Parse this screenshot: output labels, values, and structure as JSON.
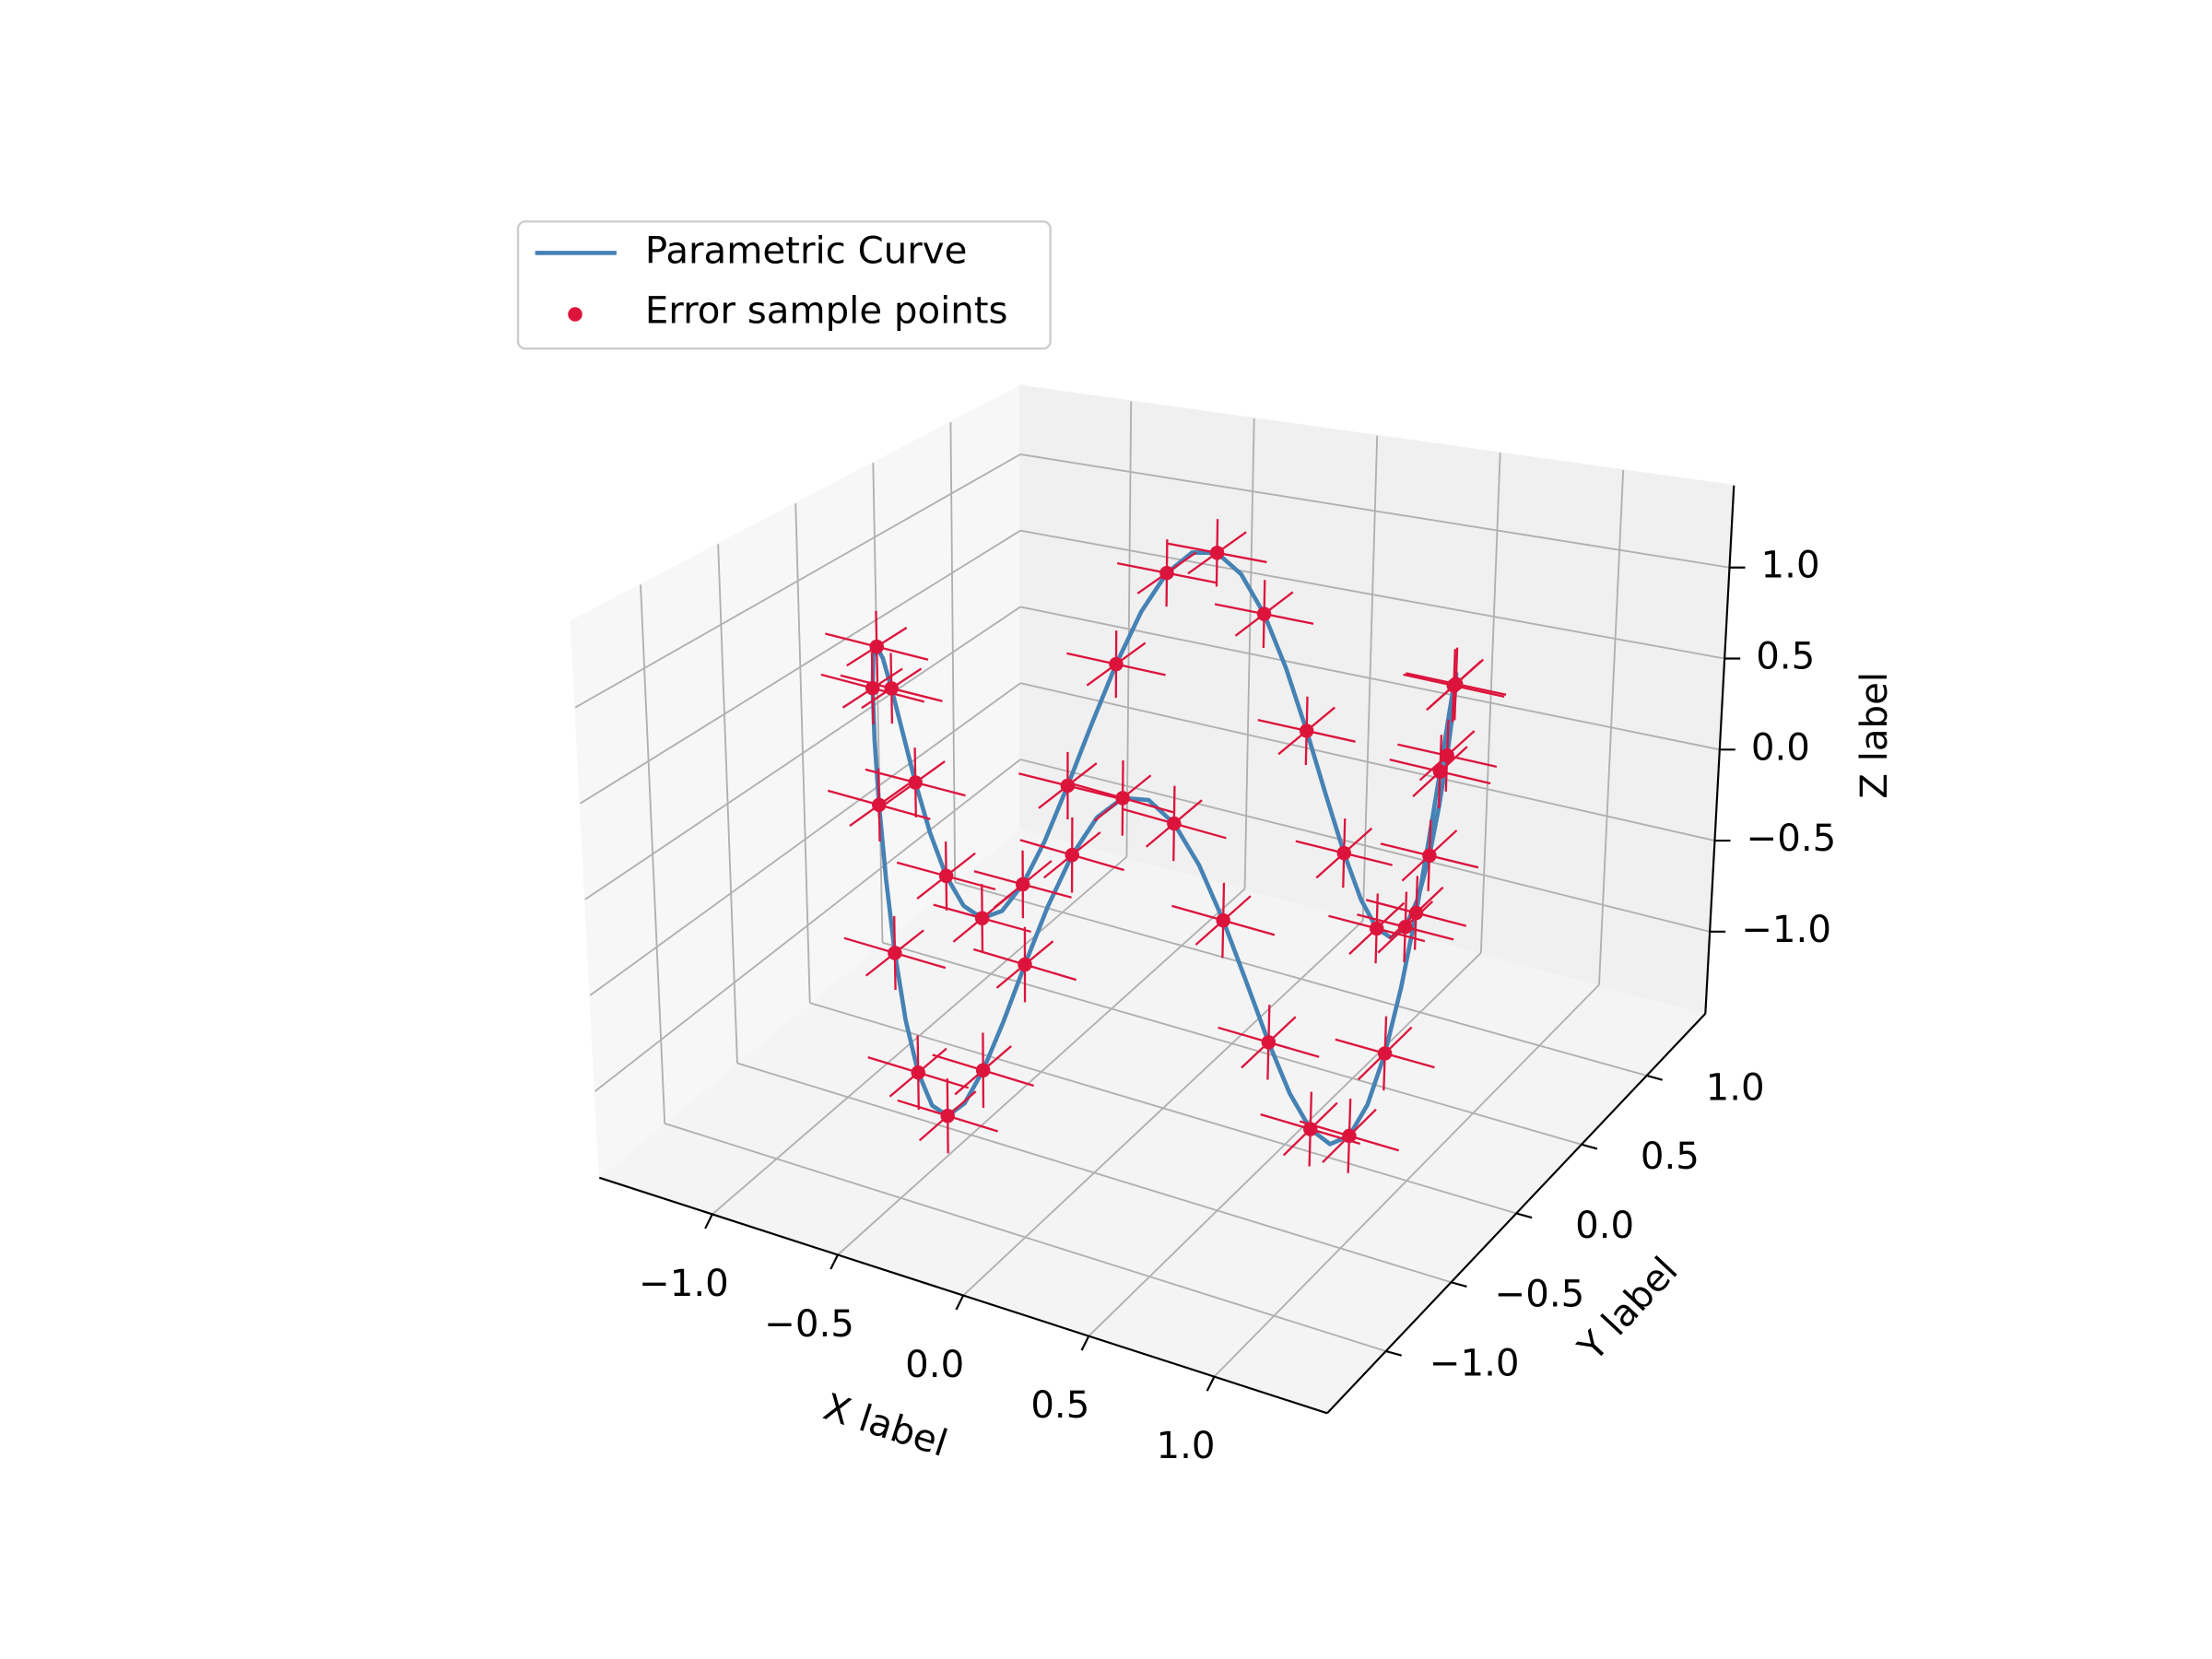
{
  "chart_data": {
    "type": "line3d",
    "xlabel": "X label",
    "ylabel": "Y label",
    "zlabel": "Z label",
    "xlim": [
      -1.45,
      1.45
    ],
    "ylim": [
      -1.45,
      1.45
    ],
    "zlim": [
      -1.45,
      1.45
    ],
    "xticks": [
      {
        "value": -1,
        "label": "−1.0"
      },
      {
        "value": -0.5,
        "label": "−0.5"
      },
      {
        "value": 0,
        "label": "0.0"
      },
      {
        "value": 0.5,
        "label": "0.5"
      },
      {
        "value": 1,
        "label": "1.0"
      }
    ],
    "yticks": [
      {
        "value": -1,
        "label": "−1.0"
      },
      {
        "value": -0.5,
        "label": "−0.5"
      },
      {
        "value": 0,
        "label": "0.0"
      },
      {
        "value": 0.5,
        "label": "0.5"
      },
      {
        "value": 1,
        "label": "1.0"
      }
    ],
    "zticks": [
      {
        "value": -1,
        "label": "−1.0"
      },
      {
        "value": -0.5,
        "label": "−0.5"
      },
      {
        "value": 0,
        "label": "0.0"
      },
      {
        "value": 0.5,
        "label": "0.5"
      },
      {
        "value": 1,
        "label": "1.0"
      }
    ],
    "grid": true,
    "legend": "upper left",
    "series": [
      {
        "name": "Parametric Curve",
        "type": "line",
        "color": "#4682b4",
        "x": [
          1,
          0.996,
          0.985,
          0.966,
          0.94,
          0.906,
          0.866,
          0.819,
          0.766,
          0.707,
          0.643,
          0.574,
          0.5,
          0.423,
          0.342,
          0.259,
          0.174,
          0.087,
          0,
          -0.087,
          -0.174,
          -0.259,
          -0.342,
          -0.423,
          -0.5,
          -0.574,
          -0.643,
          -0.707,
          -0.766,
          -0.819,
          -0.866,
          -0.906,
          -0.94,
          -0.966,
          -0.985,
          -0.996,
          -1,
          -0.996,
          -0.985,
          -0.966,
          -0.94,
          -0.906,
          -0.866,
          -0.819,
          -0.766,
          -0.707,
          -0.643,
          -0.574,
          -0.5,
          -0.423,
          -0.342,
          -0.259,
          -0.174,
          -0.087,
          0,
          0.087,
          0.174,
          0.259,
          0.342,
          0.423,
          0.5,
          0.574,
          0.643,
          0.707,
          0.766,
          0.819,
          0.866,
          0.906,
          0.94,
          0.966,
          0.985,
          0.996,
          1
        ],
        "y": [
          0,
          0.087,
          0.174,
          0.259,
          0.342,
          0.423,
          0.5,
          0.574,
          0.643,
          0.707,
          0.766,
          0.819,
          0.866,
          0.906,
          0.94,
          0.966,
          0.985,
          0.996,
          1,
          0.996,
          0.985,
          0.966,
          0.94,
          0.906,
          0.866,
          0.819,
          0.766,
          0.707,
          0.643,
          0.574,
          0.5,
          0.423,
          0.342,
          0.259,
          0.174,
          0.087,
          0,
          -0.087,
          -0.174,
          -0.259,
          -0.342,
          -0.423,
          -0.5,
          -0.574,
          -0.643,
          -0.707,
          -0.766,
          -0.819,
          -0.866,
          -0.906,
          -0.94,
          -0.966,
          -0.985,
          -0.996,
          -1,
          -0.996,
          -0.985,
          -0.966,
          -0.94,
          -0.906,
          -0.866,
          -0.819,
          -0.766,
          -0.707,
          -0.643,
          -0.574,
          -0.5,
          -0.423,
          -0.342,
          -0.259,
          -0.174,
          -0.087,
          0
        ],
        "z": [
          0,
          0.342,
          0.643,
          0.866,
          0.985,
          0.985,
          0.866,
          0.643,
          0.342,
          0,
          -0.342,
          -0.643,
          -0.866,
          -0.985,
          -0.985,
          -0.866,
          -0.643,
          -0.342,
          0,
          0.342,
          0.643,
          0.866,
          0.985,
          0.985,
          0.866,
          0.643,
          0.342,
          0,
          -0.342,
          -0.643,
          -0.866,
          -0.985,
          -0.985,
          -0.866,
          -0.643,
          -0.342,
          0,
          0.342,
          0.643,
          0.866,
          0.985,
          0.985,
          0.866,
          0.643,
          0.342,
          0,
          -0.342,
          -0.643,
          -0.866,
          -0.985,
          -0.985,
          -0.866,
          -0.643,
          -0.342,
          0,
          0.342,
          0.643,
          0.866,
          0.985,
          0.985,
          0.866,
          0.643,
          0.342,
          0,
          -0.342,
          -0.643,
          -0.866,
          -0.985,
          -0.985,
          -0.866,
          -0.643,
          -0.342,
          0
        ]
      },
      {
        "name": "Error sample points",
        "type": "scatter",
        "color": "#dc143c",
        "x": [
          1,
          0.985,
          0.94,
          0.866,
          0.766,
          0.643,
          0.5,
          0.342,
          0.174,
          0,
          -0.174,
          -0.342,
          -0.5,
          -0.643,
          -0.766,
          -0.866,
          -0.94,
          -0.985,
          -1,
          -0.985,
          -0.94,
          -0.866,
          -0.766,
          -0.643,
          -0.5,
          -0.342,
          -0.174,
          0,
          0.174,
          0.342,
          0.5,
          0.643,
          0.766,
          0.866,
          0.94,
          0.985
        ],
        "y": [
          0,
          0.174,
          0.342,
          0.5,
          0.643,
          0.766,
          0.866,
          0.94,
          0.985,
          1,
          0.985,
          0.94,
          0.866,
          0.766,
          0.643,
          0.5,
          0.342,
          0.174,
          0,
          -0.174,
          -0.342,
          -0.5,
          -0.643,
          -0.766,
          -0.866,
          -0.94,
          -0.985,
          -1,
          -0.985,
          -0.94,
          -0.866,
          -0.766,
          -0.643,
          -0.5,
          -0.342,
          -0.174
        ],
        "z": [
          0,
          0.643,
          0.985,
          0.866,
          0.342,
          -0.342,
          -0.866,
          -0.985,
          -0.643,
          0,
          0.643,
          0.985,
          0.866,
          0.342,
          -0.342,
          -0.866,
          -0.985,
          -0.643,
          0,
          0.643,
          0.985,
          0.866,
          0.342,
          -0.342,
          -0.866,
          -0.985,
          -0.643,
          0,
          0.643,
          0.985,
          0.866,
          0.342,
          -0.342,
          -0.866,
          -0.985,
          -0.643
        ],
        "xerr": 0.2,
        "yerr": 0.2,
        "zerr": 0.2
      }
    ]
  }
}
